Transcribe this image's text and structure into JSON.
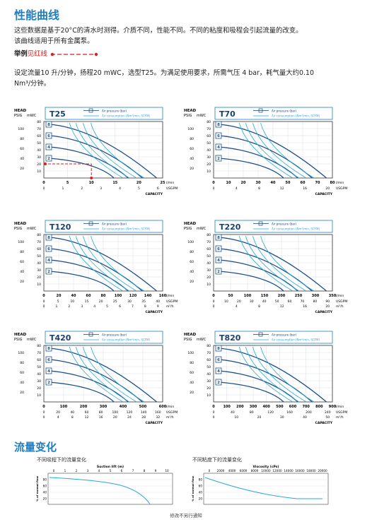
{
  "title": "性能曲线",
  "intro1": "这些数据是基于20°C的清水时测得。介质不同，性能不同。不同的粘度和吸程会引起流量的改变。",
  "intro2": "该曲线适用于所有金属泵。",
  "example_label": "举例",
  "example_red": "见红线",
  "example_text1": "设定流量10 升/分钟，扬程20 mWC，选型T25。为满足使用要求，所需气压 4 bar，耗气量大约0.10",
  "example_text2": "Nm³/分钟。",
  "legend_air": "Air pressure (bar)",
  "legend_cons": "Air consumption (Nm³/min, SCFM)",
  "head_label": "HEAD",
  "psig_label": "PSIG",
  "mwc_label": "mWC",
  "capacity_label": "CAPACITY",
  "lmin_label": "l/min",
  "usgpm_label": "USGPM",
  "m3h_label": "m³/h",
  "colors": {
    "accent": "#1f7fc3",
    "curve_dark": "#1b4f86",
    "curve_light": "#2aa9d8",
    "red": "#d62222"
  },
  "charts": [
    {
      "model": "T25",
      "lmin": [
        "0",
        "5",
        "10",
        "15",
        "20",
        "25"
      ],
      "usgpm": [
        "0",
        "1",
        "2",
        "3",
        "4",
        "5",
        "6"
      ],
      "m3h": []
    },
    {
      "model": "T70",
      "lmin": [
        "0",
        "10",
        "20",
        "30",
        "40",
        "50",
        "60",
        "70",
        "80"
      ],
      "usgpm": [
        "0",
        "4",
        "8",
        "12",
        "16",
        "20"
      ],
      "m3h": []
    },
    {
      "model": "T120",
      "lmin": [
        "0",
        "20",
        "40",
        "60",
        "80",
        "100",
        "120",
        "140",
        "160"
      ],
      "usgpm": [
        "0",
        "5",
        "10",
        "15",
        "20",
        "25",
        "30",
        "35",
        "40"
      ],
      "m3h": [
        "0",
        "1",
        "2",
        "3",
        "4",
        "5",
        "6",
        "7",
        "8",
        "9"
      ]
    },
    {
      "model": "T220",
      "lmin": [
        "0",
        "50",
        "100",
        "150",
        "200",
        "250",
        "300",
        "350"
      ],
      "usgpm": [
        "0",
        "10",
        "20",
        "30",
        "40",
        "50",
        "60",
        "70",
        "80",
        "90"
      ],
      "m3h": [
        "0",
        "4",
        "8",
        "12",
        "16",
        "20"
      ]
    },
    {
      "model": "T420",
      "lmin": [
        "0",
        "100",
        "200",
        "300",
        "400",
        "500",
        "600"
      ],
      "usgpm": [
        "0",
        "20",
        "40",
        "60",
        "80",
        "100",
        "120",
        "140",
        "160"
      ],
      "m3h": [
        "0",
        "4",
        "8",
        "12",
        "16",
        "20",
        "24",
        "28",
        "32"
      ]
    },
    {
      "model": "T820",
      "lmin": [
        "0",
        "100",
        "200",
        "300",
        "400",
        "500",
        "600",
        "700",
        "800",
        "900"
      ],
      "usgpm": [
        "0",
        "40",
        "80",
        "120",
        "160",
        "200",
        "240"
      ],
      "m3h": [
        "0",
        "10",
        "20",
        "30",
        "40",
        "50"
      ]
    }
  ],
  "mwc_ticks": [
    "80",
    "70",
    "60",
    "50",
    "40",
    "30",
    "20",
    "10"
  ],
  "psig_ticks": [
    "100",
    "80",
    "60",
    "40",
    "20"
  ],
  "pressure_boxes": [
    "8",
    "6",
    "4",
    "2"
  ],
  "section2_title": "流量变化",
  "suction_caption": "不同吸程下的流量变化",
  "viscosity_caption": "不同粘度下的流量变化",
  "suction_axis_title": "Suction lift (m)",
  "suction_ticks": [
    "0",
    "1",
    "2",
    "3",
    "4",
    "5",
    "6",
    "7",
    "8",
    "9",
    "10"
  ],
  "viscosity_axis_title": "Viscosity (cPs)",
  "viscosity_ticks": [
    "0",
    "2000",
    "4000",
    "6000",
    "8000",
    "10000",
    "12000",
    "14000",
    "16000",
    "18000",
    "20000"
  ],
  "percent_label": "% of normal flow",
  "percent_ticks": [
    "80",
    "60",
    "40",
    "20"
  ],
  "footer": "修改不另行通知"
}
